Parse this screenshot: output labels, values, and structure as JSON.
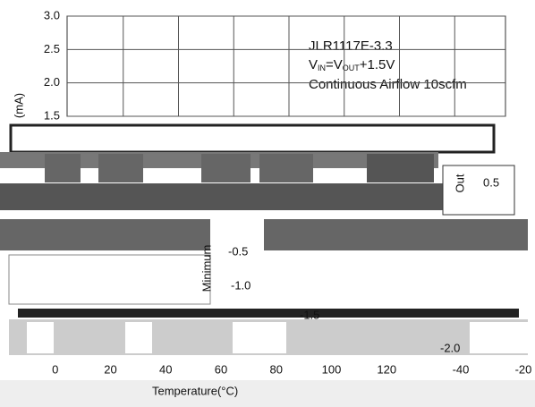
{
  "chart_data": {
    "type": "line",
    "annotation": [
      "JLR1117E-3.3",
      "Continuous Airflow 10scfm"
    ],
    "condition": [
      "V",
      "IN",
      "=V",
      "OUT",
      "+1.5V"
    ],
    "ylabel": "(mA)",
    "xlabel": "Temperature(°C)",
    "ylim": [
      1.5,
      3.0
    ],
    "yticks": [
      3.0,
      2.5,
      2.0,
      1.5
    ],
    "xlim": [
      -20,
      140
    ],
    "xticks": [
      0,
      20,
      40,
      60,
      80,
      100,
      120
    ],
    "fragments": [
      "Minimum",
      "-0.5",
      "-1.0",
      "-1.5",
      "-2.0",
      "-40",
      "-20",
      "0.5",
      "Out"
    ],
    "grid": true
  }
}
